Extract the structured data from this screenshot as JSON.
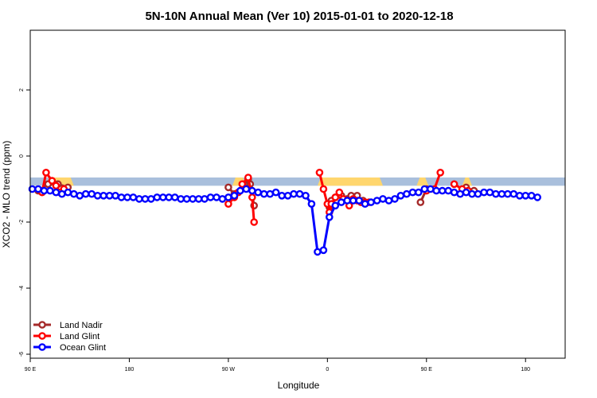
{
  "chart_data": {
    "type": "line",
    "title": "5N-10N Annual Mean (Ver 10)   2015-01-01 to 2020-12-18",
    "xlabel": "Longitude",
    "ylabel": "XCO2 - MLO trend (ppm)",
    "x_domain": [
      -90,
      180
    ],
    "x_ticks": [
      {
        "value": -90,
        "label": "90 E"
      },
      {
        "value": -40,
        "label": "180"
      },
      {
        "value": 10,
        "label": "90 W"
      },
      {
        "value": 60,
        "label": "0"
      },
      {
        "value": 110,
        "label": "90 E"
      },
      {
        "value": 160,
        "label": "180"
      }
    ],
    "ylim": [
      -6.1,
      3.8
    ],
    "y_ticks": [
      {
        "value": -6,
        "label": "-6"
      },
      {
        "value": -4,
        "label": "-4"
      },
      {
        "value": -2,
        "label": "-2"
      },
      {
        "value": 0,
        "label": "0"
      },
      {
        "value": 2,
        "label": "2"
      }
    ],
    "land_band": {
      "y_top": -0.65,
      "y_bottom": -0.9,
      "color": "#a9bfdc",
      "land_segments": [
        [
          -82,
          -68
        ],
        [
          12,
          19
        ],
        [
          55,
          88
        ],
        [
          105,
          111
        ],
        [
          128,
          133
        ]
      ],
      "land_color": "#ffd66e"
    },
    "legend": {
      "position": "bottom-left",
      "entries": [
        "Land Nadir",
        "Land Glint",
        "Ocean Glint"
      ]
    },
    "series": [
      {
        "name": "Land Nadir",
        "color": "#a52a2a",
        "segments": [
          [
            [
              -86,
              -1.05
            ],
            [
              -81,
              -0.85
            ],
            [
              -76,
              -0.85
            ],
            [
              -71,
              -0.95
            ]
          ],
          [
            [
              10,
              -0.95
            ],
            [
              13,
              -1.15
            ],
            [
              18,
              -0.85
            ],
            [
              20,
              -0.7
            ],
            [
              21,
              -0.85
            ],
            [
              23,
              -1.5
            ]
          ],
          [
            [
              61,
              -1.55
            ],
            [
              62,
              -1.35
            ],
            [
              64,
              -1.25
            ],
            [
              67,
              -1.2
            ],
            [
              70,
              -1.3
            ],
            [
              72,
              -1.2
            ],
            [
              75,
              -1.2
            ],
            [
              78,
              -1.35
            ]
          ],
          [
            [
              107,
              -1.4
            ],
            [
              110,
              -1.0
            ]
          ],
          [
            [
              130,
              -0.95
            ],
            [
              134,
              -1.05
            ]
          ]
        ]
      },
      {
        "name": "Land Glint",
        "color": "#ff0000",
        "segments": [
          [
            [
              -84,
              -1.1
            ],
            [
              -82,
              -0.5
            ],
            [
              -79,
              -0.75
            ],
            [
              -77,
              -0.9
            ],
            [
              -75,
              -1.1
            ],
            [
              -73,
              -1.0
            ]
          ],
          [
            [
              10,
              -1.45
            ],
            [
              13,
              -1.25
            ],
            [
              15,
              -1.1
            ],
            [
              17,
              -0.85
            ],
            [
              20,
              -0.65
            ],
            [
              22,
              -1.25
            ],
            [
              23,
              -2.0
            ]
          ],
          [
            [
              56,
              -0.5
            ],
            [
              58,
              -1.0
            ],
            [
              60,
              -1.45
            ],
            [
              61,
              -1.7
            ],
            [
              62,
              -1.45
            ],
            [
              64,
              -1.25
            ],
            [
              66,
              -1.1
            ],
            [
              68,
              -1.3
            ],
            [
              71,
              -1.5
            ],
            [
              73,
              -1.3
            ],
            [
              75,
              -1.35
            ],
            [
              77,
              -1.4
            ],
            [
              79,
              -1.4
            ],
            [
              81,
              -1.4
            ]
          ],
          [
            [
              110,
              -1.05
            ],
            [
              114,
              -1.0
            ],
            [
              117,
              -0.5
            ]
          ],
          [
            [
              124,
              -0.85
            ],
            [
              128,
              -1.0
            ],
            [
              131,
              -1.05
            ]
          ]
        ]
      },
      {
        "name": "Ocean Glint",
        "color": "#0000ff",
        "segments": [
          [
            [
              -89,
              -1.0
            ],
            [
              -86,
              -1.0
            ],
            [
              -83,
              -1.05
            ],
            [
              -80,
              -1.05
            ],
            [
              -77,
              -1.1
            ],
            [
              -74,
              -1.15
            ],
            [
              -71,
              -1.1
            ],
            [
              -68,
              -1.15
            ],
            [
              -65,
              -1.2
            ],
            [
              -62,
              -1.15
            ],
            [
              -59,
              -1.15
            ],
            [
              -56,
              -1.2
            ],
            [
              -53,
              -1.2
            ],
            [
              -50,
              -1.2
            ],
            [
              -47,
              -1.2
            ],
            [
              -44,
              -1.25
            ],
            [
              -41,
              -1.25
            ],
            [
              -38,
              -1.25
            ],
            [
              -35,
              -1.3
            ],
            [
              -32,
              -1.3
            ],
            [
              -29,
              -1.3
            ],
            [
              -26,
              -1.25
            ],
            [
              -23,
              -1.25
            ],
            [
              -20,
              -1.25
            ],
            [
              -17,
              -1.25
            ],
            [
              -14,
              -1.3
            ],
            [
              -11,
              -1.3
            ],
            [
              -8,
              -1.3
            ],
            [
              -5,
              -1.3
            ],
            [
              -2,
              -1.3
            ],
            [
              1,
              -1.25
            ],
            [
              4,
              -1.25
            ],
            [
              7,
              -1.3
            ],
            [
              10,
              -1.25
            ],
            [
              13,
              -1.2
            ],
            [
              16,
              -1.05
            ],
            [
              19,
              -1.0
            ],
            [
              22,
              -1.05
            ],
            [
              25,
              -1.1
            ],
            [
              28,
              -1.15
            ],
            [
              31,
              -1.15
            ],
            [
              34,
              -1.1
            ],
            [
              37,
              -1.2
            ],
            [
              40,
              -1.2
            ],
            [
              43,
              -1.15
            ],
            [
              46,
              -1.15
            ],
            [
              49,
              -1.2
            ],
            [
              52,
              -1.45
            ],
            [
              55,
              -2.9
            ],
            [
              58,
              -2.85
            ],
            [
              61,
              -1.85
            ],
            [
              64,
              -1.5
            ],
            [
              67,
              -1.4
            ],
            [
              70,
              -1.35
            ],
            [
              73,
              -1.35
            ],
            [
              76,
              -1.35
            ],
            [
              79,
              -1.45
            ],
            [
              82,
              -1.4
            ],
            [
              85,
              -1.35
            ],
            [
              88,
              -1.3
            ],
            [
              91,
              -1.35
            ],
            [
              94,
              -1.3
            ],
            [
              97,
              -1.2
            ],
            [
              100,
              -1.15
            ],
            [
              103,
              -1.1
            ],
            [
              106,
              -1.1
            ],
            [
              109,
              -1.0
            ],
            [
              112,
              -1.0
            ],
            [
              115,
              -1.05
            ],
            [
              118,
              -1.05
            ],
            [
              121,
              -1.05
            ],
            [
              124,
              -1.1
            ],
            [
              127,
              -1.15
            ],
            [
              130,
              -1.1
            ],
            [
              133,
              -1.15
            ],
            [
              136,
              -1.15
            ],
            [
              139,
              -1.1
            ],
            [
              142,
              -1.1
            ],
            [
              145,
              -1.15
            ],
            [
              148,
              -1.15
            ],
            [
              151,
              -1.15
            ],
            [
              154,
              -1.15
            ],
            [
              157,
              -1.2
            ],
            [
              160,
              -1.2
            ],
            [
              163,
              -1.2
            ],
            [
              166,
              -1.25
            ]
          ]
        ]
      }
    ]
  }
}
